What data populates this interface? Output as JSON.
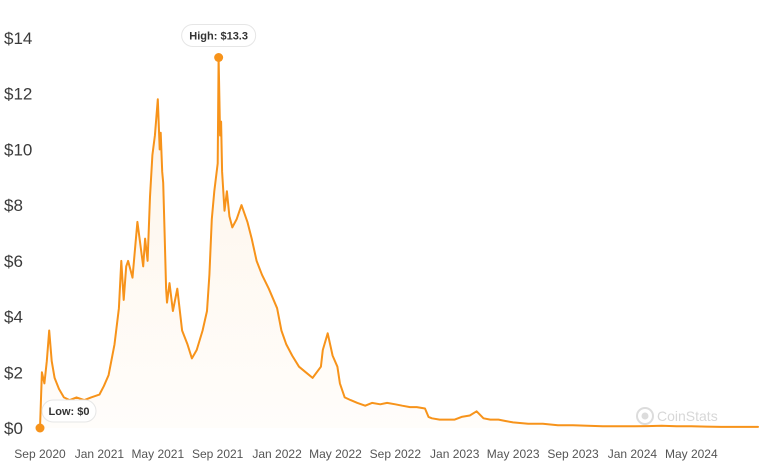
{
  "chart_data": {
    "type": "line",
    "title": "",
    "xlabel": "",
    "ylabel": "",
    "ylim": [
      0,
      14
    ],
    "y_ticks": [
      0,
      2,
      4,
      6,
      8,
      10,
      12,
      14
    ],
    "y_tick_labels": [
      "$0",
      "$2",
      "$4",
      "$6",
      "$8",
      "$10",
      "$12",
      "$14"
    ],
    "x_ticks": [
      "2020-09-01",
      "2021-01-01",
      "2021-05-01",
      "2021-09-01",
      "2022-01-01",
      "2022-05-01",
      "2022-09-01",
      "2023-01-01",
      "2023-05-01",
      "2023-09-01",
      "2024-01-01",
      "2024-05-01"
    ],
    "x_tick_labels": [
      "Sep 2020",
      "Jan 2021",
      "May 2021",
      "Sep 2021",
      "Jan 2022",
      "May 2022",
      "Sep 2022",
      "Jan 2023",
      "May 2023",
      "Sep 2023",
      "Jan 2024",
      "May 2024"
    ],
    "xlim": [
      "2020-09-01",
      "2024-09-15"
    ],
    "grid": false,
    "line_color": "#f7931a",
    "series": [
      {
        "x": [
          "2020-09-01",
          "2020-09-05",
          "2020-09-10",
          "2020-09-15",
          "2020-09-20",
          "2020-09-25",
          "2020-10-01",
          "2020-10-10",
          "2020-10-20",
          "2020-11-01",
          "2020-11-15",
          "2020-12-01",
          "2020-12-15",
          "2021-01-01",
          "2021-01-10",
          "2021-01-20",
          "2021-02-01",
          "2021-02-10",
          "2021-02-15",
          "2021-02-20",
          "2021-02-25",
          "2021-03-01",
          "2021-03-10",
          "2021-03-20",
          "2021-04-01",
          "2021-04-05",
          "2021-04-10",
          "2021-04-15",
          "2021-04-20",
          "2021-04-25",
          "2021-05-01",
          "2021-05-05",
          "2021-05-07",
          "2021-05-10",
          "2021-05-12",
          "2021-05-15",
          "2021-05-18",
          "2021-05-20",
          "2021-05-25",
          "2021-06-01",
          "2021-06-10",
          "2021-06-20",
          "2021-07-01",
          "2021-07-10",
          "2021-07-20",
          "2021-08-01",
          "2021-08-10",
          "2021-08-15",
          "2021-08-20",
          "2021-08-25",
          "2021-09-01",
          "2021-09-03",
          "2021-09-06",
          "2021-09-08",
          "2021-09-10",
          "2021-09-15",
          "2021-09-20",
          "2021-09-25",
          "2021-10-01",
          "2021-10-10",
          "2021-10-20",
          "2021-11-01",
          "2021-11-10",
          "2021-11-20",
          "2021-12-01",
          "2021-12-15",
          "2022-01-01",
          "2022-01-10",
          "2022-01-20",
          "2022-02-01",
          "2022-02-15",
          "2022-03-01",
          "2022-03-15",
          "2022-04-01",
          "2022-04-05",
          "2022-04-15",
          "2022-04-25",
          "2022-05-05",
          "2022-05-10",
          "2022-05-20",
          "2022-06-01",
          "2022-06-15",
          "2022-07-01",
          "2022-07-15",
          "2022-08-01",
          "2022-08-15",
          "2022-09-01",
          "2022-09-15",
          "2022-10-01",
          "2022-10-15",
          "2022-11-01",
          "2022-11-08",
          "2022-11-15",
          "2022-12-01",
          "2022-12-15",
          "2023-01-01",
          "2023-01-15",
          "2023-02-01",
          "2023-02-15",
          "2023-03-01",
          "2023-03-15",
          "2023-04-01",
          "2023-04-15",
          "2023-05-01",
          "2023-06-01",
          "2023-07-01",
          "2023-08-01",
          "2023-09-01",
          "2023-10-01",
          "2023-11-01",
          "2023-12-01",
          "2024-01-01",
          "2024-02-01",
          "2024-03-01",
          "2024-04-01",
          "2024-05-01",
          "2024-06-01",
          "2024-07-01",
          "2024-08-01",
          "2024-09-01",
          "2024-09-15"
        ],
        "values": [
          0,
          2.0,
          1.6,
          2.4,
          3.5,
          2.4,
          1.8,
          1.4,
          1.1,
          1.0,
          1.1,
          1.0,
          1.1,
          1.2,
          1.5,
          1.9,
          3.0,
          4.3,
          6.0,
          4.6,
          5.8,
          6.0,
          5.4,
          7.4,
          5.8,
          6.8,
          6.0,
          8.3,
          9.8,
          10.5,
          11.8,
          10.0,
          10.6,
          9.2,
          8.8,
          7.0,
          5.0,
          4.5,
          5.2,
          4.2,
          5.0,
          3.5,
          3.0,
          2.5,
          2.8,
          3.5,
          4.2,
          5.5,
          7.5,
          8.5,
          9.5,
          13.3,
          10.5,
          11.0,
          9.2,
          7.8,
          8.5,
          7.6,
          7.2,
          7.5,
          8.0,
          7.4,
          6.8,
          6.0,
          5.5,
          5.0,
          4.3,
          3.5,
          3.0,
          2.6,
          2.2,
          2.0,
          1.8,
          2.2,
          2.8,
          3.4,
          2.6,
          2.2,
          1.6,
          1.1,
          1.0,
          0.9,
          0.8,
          0.9,
          0.85,
          0.9,
          0.85,
          0.8,
          0.75,
          0.75,
          0.7,
          0.4,
          0.35,
          0.3,
          0.3,
          0.3,
          0.4,
          0.45,
          0.6,
          0.35,
          0.3,
          0.3,
          0.25,
          0.2,
          0.15,
          0.15,
          0.1,
          0.1,
          0.08,
          0.06,
          0.06,
          0.06,
          0.07,
          0.08,
          0.06,
          0.06,
          0.05,
          0.04,
          0.04,
          0.04,
          0.04
        ]
      }
    ],
    "annotations": [
      {
        "label": "High: $13.3",
        "x": "2021-09-03",
        "y": 13.3
      },
      {
        "label": "Low: $0",
        "x": "2020-09-01",
        "y": 0
      }
    ],
    "watermark": "CoinStats"
  }
}
